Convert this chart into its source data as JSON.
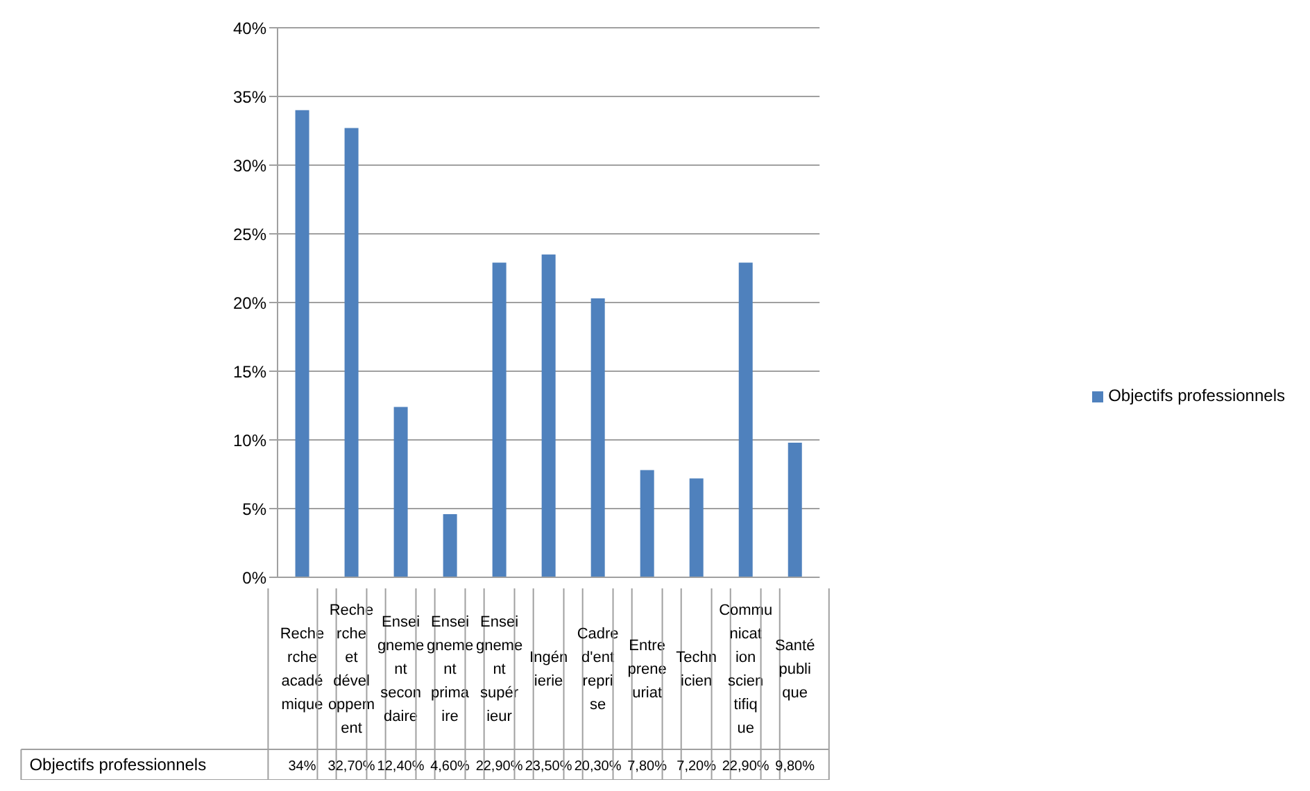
{
  "chart_data": {
    "type": "bar",
    "categories": [
      "Recherche académique",
      "Recherche et développement",
      "Enseignement secondaire",
      "Enseignement primaire",
      "Enseignement supérieur",
      "Ingénierie",
      "Cadre d'entreprise",
      "Entrepreneuriat",
      "Technicien",
      "Communication scientifique",
      "Santé publique"
    ],
    "series": [
      {
        "name": "Objectifs professionnels",
        "color": "#4f81bd",
        "values": [
          34,
          32.7,
          12.4,
          4.6,
          22.9,
          23.5,
          20.3,
          7.8,
          7.2,
          22.9,
          9.8
        ],
        "value_labels": [
          "34%",
          "32,70%",
          "12,40%",
          "4,60%",
          "22,90%",
          "23,50%",
          "20,30%",
          "7,80%",
          "7,20%",
          "22,90%",
          "9,80%"
        ]
      }
    ],
    "ylim": [
      0,
      40
    ],
    "yticks": [
      {
        "value": 0,
        "label": "0%"
      },
      {
        "value": 5,
        "label": "5%"
      },
      {
        "value": 10,
        "label": "10%"
      },
      {
        "value": 15,
        "label": "15%"
      },
      {
        "value": 20,
        "label": "20%"
      },
      {
        "value": 25,
        "label": "25%"
      },
      {
        "value": 30,
        "label": "30%"
      },
      {
        "value": 35,
        "label": "35%"
      },
      {
        "value": 40,
        "label": "40%"
      }
    ],
    "grid": "y",
    "legend": "right"
  }
}
